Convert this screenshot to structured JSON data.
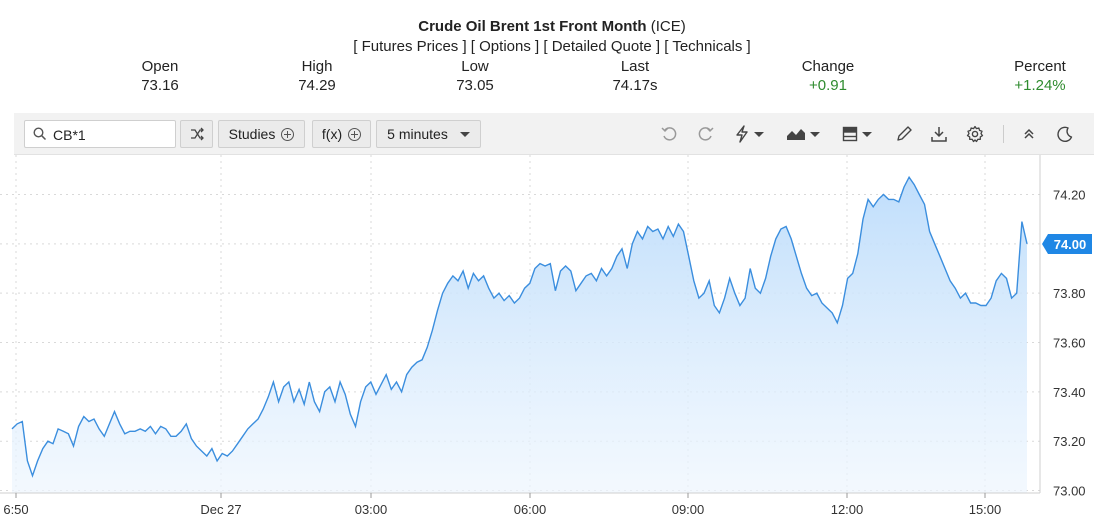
{
  "header": {
    "title": "Crude Oil Brent 1st Front Month",
    "exchange": "(ICE)",
    "links": [
      "Futures Prices",
      "Options",
      "Detailed Quote",
      "Technicals"
    ]
  },
  "stats": [
    {
      "label": "Open",
      "value": "73.16"
    },
    {
      "label": "High",
      "value": "74.29"
    },
    {
      "label": "Low",
      "value": "73.05"
    },
    {
      "label": "Last",
      "value": "74.17s"
    },
    {
      "label": "Change",
      "value": "+0.91"
    },
    {
      "label": "Percent",
      "value": "+1.24%"
    }
  ],
  "toolbar": {
    "search_value": "CB*1",
    "studies_label": "Studies",
    "fx_label": "f(x)",
    "interval_label": "5 minutes",
    "icons": [
      "search-icon",
      "shuffle-icon",
      "undo-icon",
      "redo-icon",
      "lightning-icon",
      "area-chart-icon",
      "layout-icon",
      "pencil-icon",
      "download-icon",
      "gear-icon",
      "collapse-icon",
      "moon-icon"
    ]
  },
  "colors": {
    "line": "#3b8ede",
    "fill_top": "#bcdcfb",
    "positive": "#2e8b2e",
    "price_tag": "#1f87e5"
  },
  "chart_data": {
    "type": "area",
    "ylim": [
      72.99,
      74.36
    ],
    "y_ticks": [
      "74.20",
      "74.00",
      "73.80",
      "73.60",
      "73.40",
      "73.20",
      "73.00"
    ],
    "x_ticks": [
      "6:50",
      "Dec 27",
      "03:00",
      "06:00",
      "09:00",
      "12:00",
      "15:00"
    ],
    "current_price_label": "74.00",
    "grid": true,
    "values": [
      73.25,
      73.27,
      73.28,
      73.12,
      73.06,
      73.12,
      73.17,
      73.2,
      73.19,
      73.25,
      73.24,
      73.23,
      73.18,
      73.26,
      73.3,
      73.28,
      73.29,
      73.25,
      73.22,
      73.27,
      73.32,
      73.27,
      73.23,
      73.24,
      73.24,
      73.25,
      73.24,
      73.26,
      73.23,
      73.26,
      73.25,
      73.22,
      73.22,
      73.24,
      73.27,
      73.21,
      73.18,
      73.16,
      73.14,
      73.17,
      73.12,
      73.15,
      73.14,
      73.16,
      73.19,
      73.22,
      73.25,
      73.27,
      73.29,
      73.33,
      73.38,
      73.44,
      73.36,
      73.42,
      73.44,
      73.36,
      73.41,
      73.35,
      73.44,
      73.36,
      73.32,
      73.4,
      73.42,
      73.36,
      73.44,
      73.39,
      73.31,
      73.26,
      73.36,
      73.42,
      73.44,
      73.39,
      73.43,
      73.47,
      73.41,
      73.44,
      73.4,
      73.47,
      73.5,
      73.52,
      73.53,
      73.58,
      73.65,
      73.73,
      73.8,
      73.84,
      73.87,
      73.85,
      73.89,
      73.82,
      73.88,
      73.85,
      73.87,
      73.82,
      73.78,
      73.8,
      73.77,
      73.79,
      73.76,
      73.78,
      73.82,
      73.84,
      73.9,
      73.92,
      73.91,
      73.92,
      73.81,
      73.89,
      73.91,
      73.89,
      73.81,
      73.84,
      73.87,
      73.88,
      73.85,
      73.9,
      73.87,
      73.9,
      73.95,
      73.98,
      73.9,
      74.0,
      74.05,
      74.02,
      74.07,
      74.05,
      74.06,
      74.02,
      74.07,
      74.03,
      74.08,
      74.05,
      73.95,
      73.85,
      73.78,
      73.8,
      73.85,
      73.75,
      73.72,
      73.78,
      73.86,
      73.8,
      73.75,
      73.78,
      73.9,
      73.82,
      73.8,
      73.86,
      73.95,
      74.02,
      74.06,
      74.07,
      74.02,
      73.95,
      73.88,
      73.82,
      73.79,
      73.8,
      73.76,
      73.74,
      73.72,
      73.68,
      73.75,
      73.86,
      73.88,
      73.96,
      74.1,
      74.18,
      74.15,
      74.18,
      74.2,
      74.18,
      74.18,
      74.17,
      74.23,
      74.27,
      74.24,
      74.2,
      74.16,
      74.05,
      74.0,
      73.95,
      73.9,
      73.85,
      73.82,
      73.78,
      73.8,
      73.76,
      73.76,
      73.75,
      73.75,
      73.78,
      73.85,
      73.88,
      73.86,
      73.78,
      73.8,
      74.09,
      74.0
    ]
  }
}
